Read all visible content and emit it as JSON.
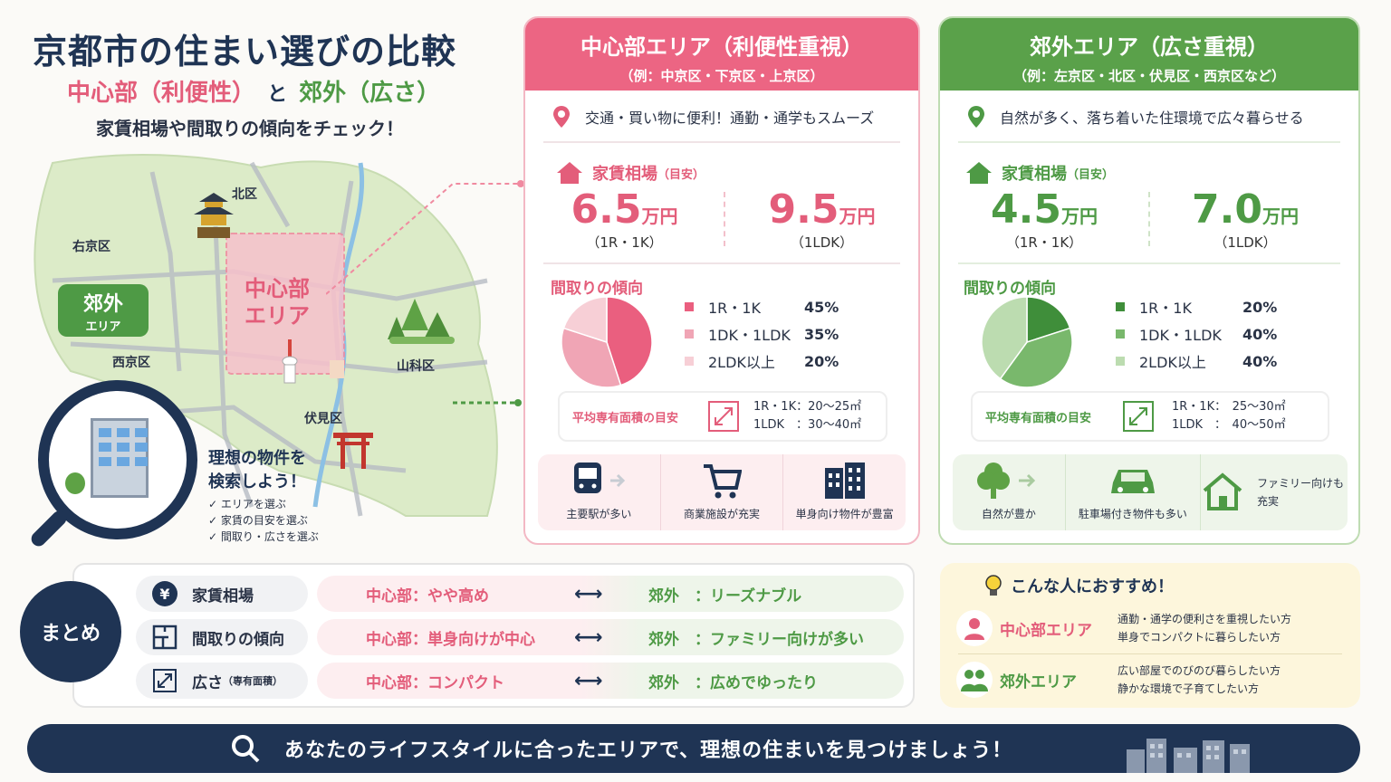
{
  "header": {
    "title": "京都市の住まい選びの比較",
    "subtitle_center": "中心部（利便性）",
    "subtitle_and": "と",
    "subtitle_suburb": "郊外（広さ）",
    "tagline": "家賃相場や間取りの傾向をチェック！"
  },
  "map": {
    "labels": {
      "kita": "北区",
      "ukyo": "右京区",
      "nishikyo": "西京区",
      "yamashina": "山科区",
      "fushimi": "伏見区"
    },
    "center_label_1": "中心部",
    "center_label_2": "エリア",
    "suburb_badge_1": "郊外",
    "suburb_badge_2": "エリア",
    "search_title_1": "理想の物件を",
    "search_title_2": "検索しよう！",
    "steps": [
      "エリアを選ぶ",
      "家賃の目安を選ぶ",
      "間取り・広さを選ぶ"
    ]
  },
  "center_panel": {
    "title": "中心部エリア（利便性重視）",
    "examples": "（例：中京区・下京区・上京区）",
    "feature": "交通・買い物に便利！通勤・通学もスムーズ",
    "rent_heading": "家賃相場",
    "rent_note": "（目安）",
    "rent1_value": "6.5",
    "rent1_unit": "万円",
    "rent1_type": "（1R・1K）",
    "rent2_value": "9.5",
    "rent2_unit": "万円",
    "rent2_type": "（1LDK）",
    "layout_heading": "間取りの傾向",
    "legend": [
      {
        "label": "1R・1K",
        "pct": "45%",
        "value": 45,
        "color": "#ea5f7f"
      },
      {
        "label": "1DK・1LDK",
        "pct": "35%",
        "value": 35,
        "color": "#f0a5b5"
      },
      {
        "label": "2LDK以上",
        "pct": "20%",
        "value": 20,
        "color": "#f7cfd6"
      }
    ],
    "area_label": "平均専有面積の目安",
    "area_line1": "1R・1K：20～25㎡",
    "area_line2": "1LDK　：30～40㎡",
    "icons": [
      {
        "icon": "train-icon",
        "label": "主要駅が多い"
      },
      {
        "icon": "cart-icon",
        "label": "商業施設が充実"
      },
      {
        "icon": "building-icon",
        "label": "単身向け物件が豊富"
      }
    ]
  },
  "suburb_panel": {
    "title": "郊外エリア（広さ重視）",
    "examples": "（例：左京区・北区・伏見区・西京区など）",
    "feature": "自然が多く、落ち着いた住環境で広々暮らせる",
    "rent_heading": "家賃相場",
    "rent_note": "（目安）",
    "rent1_value": "4.5",
    "rent1_unit": "万円",
    "rent1_type": "（1R・1K）",
    "rent2_value": "7.0",
    "rent2_unit": "万円",
    "rent2_type": "（1LDK）",
    "layout_heading": "間取りの傾向",
    "legend": [
      {
        "label": "1R・1K",
        "pct": "20%",
        "value": 20,
        "color": "#3f8e3a"
      },
      {
        "label": "1DK・1LDK",
        "pct": "40%",
        "value": 40,
        "color": "#79b86c"
      },
      {
        "label": "2LDK以上",
        "pct": "40%",
        "value": 40,
        "color": "#bcdcb0"
      }
    ],
    "area_label": "平均専有面積の目安",
    "area_line1": "1R・1K：　25～30㎡",
    "area_line2": "1LDK　：　40～50㎡",
    "icons": [
      {
        "icon": "tree-icon",
        "label": "自然が豊か"
      },
      {
        "icon": "car-icon",
        "label": "駐車場付き物件も多い"
      },
      {
        "icon": "house-icon",
        "label": "ファミリー向けも充実"
      }
    ]
  },
  "summary": {
    "badge": "まとめ",
    "rows": [
      {
        "icon": "yen-icon",
        "category": "家賃相場",
        "note": "",
        "center": "中心部：やや高め",
        "suburb": "郊外　：リーズナブル"
      },
      {
        "icon": "floorplan-icon",
        "category": "間取りの傾向",
        "note": "",
        "center": "中心部：単身向けが中心",
        "suburb": "郊外　：ファミリー向けが多い"
      },
      {
        "icon": "expand-icon",
        "category": "広さ",
        "note": "（専有面積）",
        "center": "中心部：コンパクト",
        "suburb": "郊外　：広めでゆったり"
      }
    ]
  },
  "recommend": {
    "title": "こんな人におすすめ！",
    "center_label": "中心部エリア",
    "center_lines": [
      "通勤・通学の便利さを重視したい方",
      "単身でコンパクトに暮らしたい方"
    ],
    "suburb_label": "郊外エリア",
    "suburb_lines": [
      "広い部屋でのびのび暮らしたい方",
      "静かな環境で子育てしたい方"
    ]
  },
  "footer": {
    "text": "あなたのライフスタイルに合ったエリアで、理想の住まいを見つけましょう！"
  },
  "colors": {
    "pink": "#e35d7a",
    "green": "#4e9a45",
    "navy": "#1f3454"
  }
}
